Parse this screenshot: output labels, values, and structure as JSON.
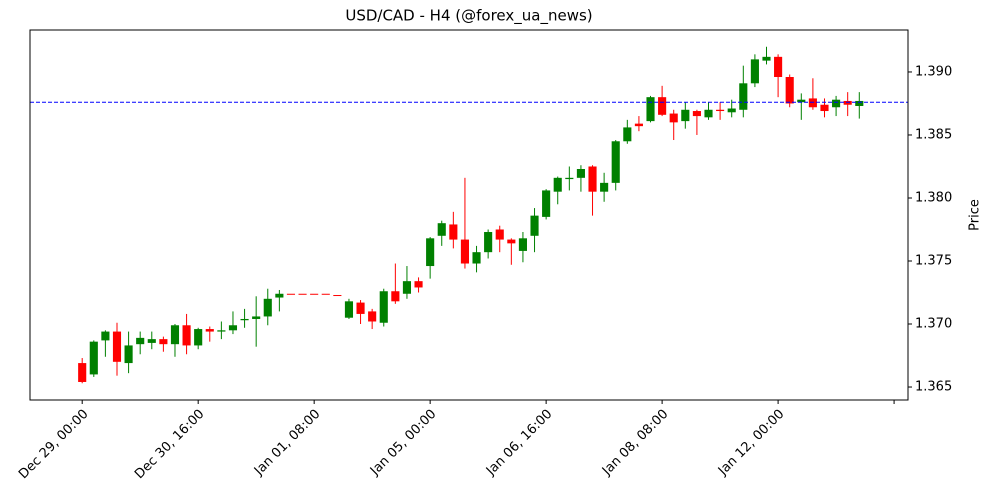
{
  "chart_data": {
    "type": "candlestick",
    "title": "USD/CAD - H4 (@forex_ua_news)",
    "y_label": "Price",
    "categories": [
      "Dec 29, 00:00",
      null,
      null,
      null,
      null,
      null,
      null,
      null,
      null,
      null,
      "Dec 30, 16:00",
      null,
      null,
      null,
      null,
      null,
      null,
      null,
      null,
      null,
      "Jan 01, 08:00",
      null,
      null,
      null,
      null,
      null,
      null,
      null,
      null,
      null,
      "Jan 05, 00:00",
      null,
      null,
      null,
      null,
      null,
      null,
      null,
      null,
      null,
      "Jan 06, 16:00",
      null,
      null,
      null,
      null,
      null,
      null,
      null,
      null,
      null,
      "Jan 08, 08:00",
      null,
      null,
      null,
      null,
      null,
      null,
      null,
      null,
      null,
      "Jan 12, 00:00",
      null,
      null,
      null,
      null,
      null,
      null,
      null
    ],
    "series": {
      "open": [
        1.3669,
        1.366,
        1.3687,
        1.3694,
        1.3669,
        1.3684,
        1.3685,
        1.3688,
        1.3684,
        1.3699,
        1.3683,
        1.3696,
        1.3694,
        1.3695,
        1.3703,
        1.3704,
        1.3706,
        1.3721,
        1.3724,
        1.3724,
        1.3724,
        1.3724,
        1.3723,
        1.3705,
        1.3717,
        1.371,
        1.3701,
        1.3726,
        1.3724,
        1.3734,
        1.3746,
        1.377,
        1.3779,
        1.3767,
        1.3748,
        1.3757,
        1.3775,
        1.3767,
        1.3758,
        1.377,
        1.3785,
        1.3805,
        1.3815,
        1.3816,
        1.3825,
        1.3805,
        1.3812,
        1.3845,
        1.3859,
        1.3861,
        1.388,
        1.3867,
        1.3861,
        1.3869,
        1.3864,
        1.387,
        1.3868,
        1.387,
        1.3891,
        1.3909,
        1.3912,
        1.3896,
        1.3876,
        1.3879,
        1.3874,
        1.3872,
        1.3877,
        1.3873
      ],
      "high": [
        1.3673,
        1.3687,
        1.3695,
        1.3701,
        1.3694,
        1.3694,
        1.3694,
        1.369,
        1.37,
        1.3708,
        1.3697,
        1.3698,
        1.3702,
        1.371,
        1.3712,
        1.3722,
        1.3728,
        1.3727,
        1.3724,
        1.3724,
        1.3724,
        1.3724,
        1.3723,
        1.372,
        1.3719,
        1.3712,
        1.3728,
        1.3748,
        1.3746,
        1.3737,
        1.3769,
        1.3782,
        1.3789,
        1.3816,
        1.3762,
        1.3775,
        1.3778,
        1.3768,
        1.3773,
        1.3792,
        1.3807,
        1.3817,
        1.3825,
        1.3826,
        1.3826,
        1.382,
        1.3846,
        1.3862,
        1.3865,
        1.3881,
        1.3889,
        1.387,
        1.3876,
        1.387,
        1.3876,
        1.3876,
        1.3878,
        1.3905,
        1.3914,
        1.392,
        1.3914,
        1.3898,
        1.3883,
        1.3895,
        1.3879,
        1.3881,
        1.3884,
        1.3884
      ],
      "low": [
        1.3653,
        1.3658,
        1.3674,
        1.3659,
        1.3661,
        1.3676,
        1.368,
        1.3678,
        1.3674,
        1.3676,
        1.368,
        1.3686,
        1.3688,
        1.3692,
        1.3697,
        1.3682,
        1.3699,
        1.371,
        1.3724,
        1.3724,
        1.3724,
        1.3724,
        1.3723,
        1.3704,
        1.37,
        1.3696,
        1.3698,
        1.3716,
        1.372,
        1.3725,
        1.3736,
        1.3762,
        1.376,
        1.3744,
        1.3741,
        1.3752,
        1.3757,
        1.3747,
        1.3749,
        1.3757,
        1.3783,
        1.3795,
        1.3806,
        1.3805,
        1.3786,
        1.3797,
        1.3806,
        1.3843,
        1.3853,
        1.386,
        1.3865,
        1.3846,
        1.3855,
        1.385,
        1.3862,
        1.3862,
        1.3864,
        1.3864,
        1.3888,
        1.3906,
        1.388,
        1.3872,
        1.3862,
        1.387,
        1.3864,
        1.3865,
        1.3865,
        1.3863
      ],
      "close": [
        1.3654,
        1.3686,
        1.3694,
        1.367,
        1.3683,
        1.3689,
        1.3688,
        1.3684,
        1.3699,
        1.3683,
        1.3696,
        1.3694,
        1.3695,
        1.3699,
        1.3704,
        1.3706,
        1.372,
        1.3724,
        1.3724,
        1.3724,
        1.3724,
        1.3724,
        1.3723,
        1.3718,
        1.3708,
        1.3702,
        1.3726,
        1.3718,
        1.3734,
        1.3729,
        1.3768,
        1.378,
        1.3767,
        1.3748,
        1.3757,
        1.3773,
        1.3767,
        1.3764,
        1.3768,
        1.3786,
        1.3806,
        1.3816,
        1.3816,
        1.3823,
        1.3805,
        1.3812,
        1.3845,
        1.3856,
        1.3857,
        1.388,
        1.3866,
        1.386,
        1.387,
        1.3865,
        1.387,
        1.3869,
        1.3871,
        1.3891,
        1.391,
        1.3912,
        1.3896,
        1.3875,
        1.3878,
        1.3872,
        1.3869,
        1.3878,
        1.3874,
        1.3877
      ]
    },
    "up_color": "green",
    "down_color": "red",
    "reference_line": {
      "value": 1.3876,
      "color": "blue"
    },
    "xlim": [
      -4.5,
      71.2
    ],
    "xticks": [
      0,
      10,
      20,
      30,
      40,
      50,
      60,
      70
    ],
    "ylim": [
      1.36397,
      1.39333
    ],
    "yticks": [
      1.365,
      {
        "value": 1.37,
        "label": "1.370"
      },
      1.375,
      {
        "value": 1.38,
        "label": "1.380"
      },
      1.385,
      {
        "value": 1.39,
        "label": "1.390"
      }
    ]
  }
}
